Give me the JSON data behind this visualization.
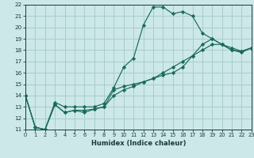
{
  "xlabel": "Humidex (Indice chaleur)",
  "bg_color": "#cce8e8",
  "grid_color": "#aacccc",
  "line_color": "#1a6b5a",
  "xlim": [
    0,
    23
  ],
  "ylim": [
    11,
    22
  ],
  "xticks": [
    0,
    1,
    2,
    3,
    4,
    5,
    6,
    7,
    8,
    9,
    10,
    11,
    12,
    13,
    14,
    15,
    16,
    17,
    18,
    19,
    20,
    21,
    22,
    23
  ],
  "yticks": [
    11,
    12,
    13,
    14,
    15,
    16,
    17,
    18,
    19,
    20,
    21,
    22
  ],
  "series": [
    [
      14.0,
      11.2,
      11.0,
      13.4,
      13.0,
      13.0,
      13.0,
      13.0,
      13.3,
      14.7,
      16.5,
      17.3,
      20.2,
      21.8,
      21.8,
      21.2,
      21.4,
      21.0,
      19.5,
      19.0,
      18.5,
      18.0,
      17.8,
      18.2
    ],
    [
      14.0,
      11.2,
      11.0,
      13.2,
      12.5,
      12.7,
      12.5,
      12.8,
      13.0,
      14.5,
      14.8,
      15.0,
      15.2,
      15.5,
      15.8,
      16.0,
      16.5,
      17.5,
      18.5,
      19.0,
      18.5,
      18.2,
      17.9,
      18.2
    ],
    [
      14.0,
      11.2,
      11.0,
      13.2,
      12.5,
      12.7,
      12.7,
      12.8,
      13.0,
      14.0,
      14.5,
      14.8,
      15.2,
      15.5,
      16.0,
      16.5,
      17.0,
      17.5,
      18.0,
      18.5,
      18.5,
      18.0,
      17.9,
      18.2
    ]
  ]
}
